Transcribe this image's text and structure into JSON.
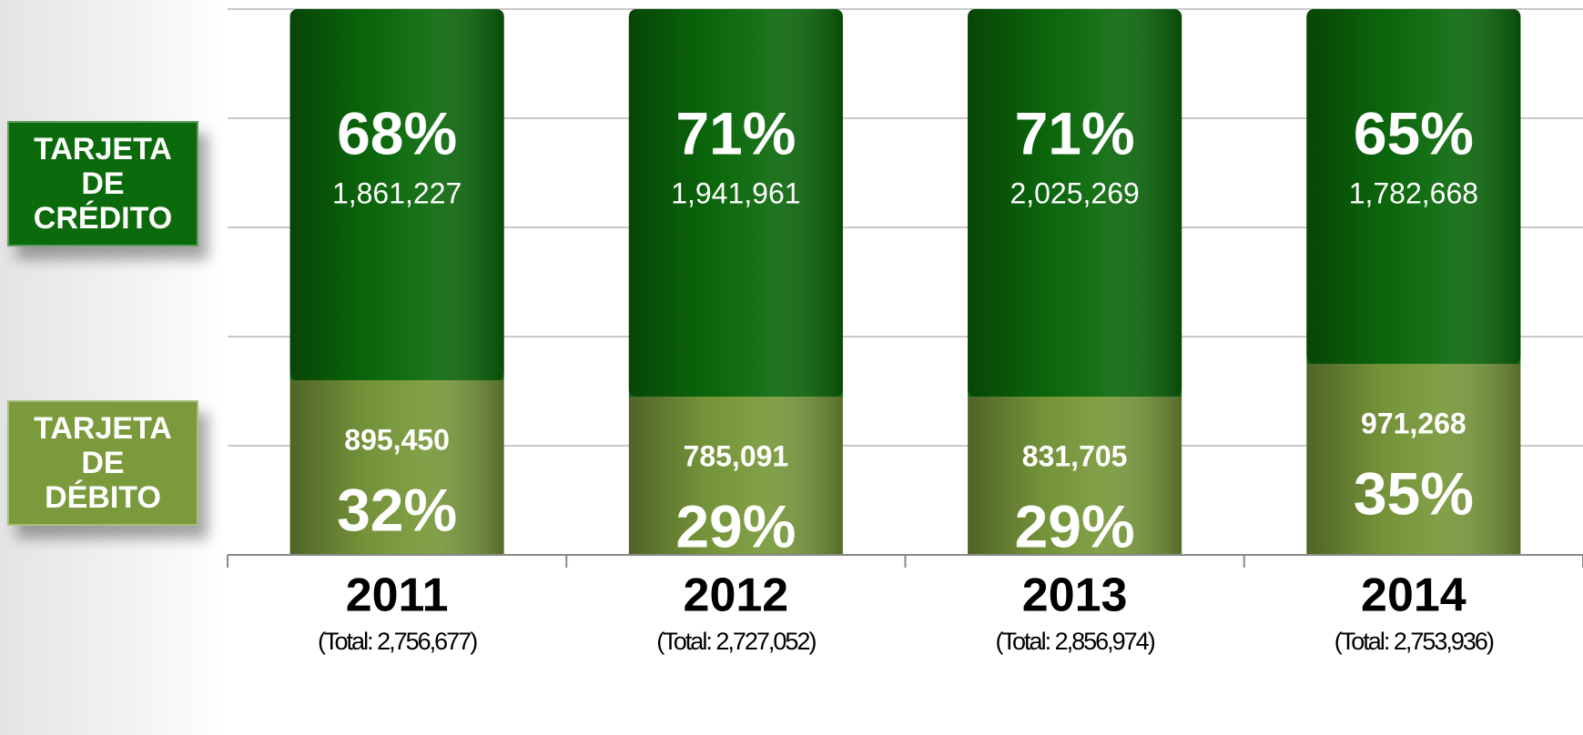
{
  "chart_data": {
    "type": "stacked_bar_100",
    "categories": [
      "2011",
      "2012",
      "2013",
      "2014"
    ],
    "totals": [
      "(Total: 2,756,677)",
      "(Total: 2,727,052)",
      "(Total: 2,856,974)",
      "(Total: 2,753,936)"
    ],
    "ylim": [
      0,
      100
    ],
    "yticks": [
      0,
      20,
      40,
      60,
      80,
      100
    ],
    "grid": true,
    "series": [
      {
        "name": "TARJETA DE DÉBITO",
        "color": "#7a9a3c",
        "values": [
          32,
          29,
          29,
          35
        ],
        "value_labels": [
          "32%",
          "29%",
          "29%",
          "35%"
        ],
        "counts": [
          895450,
          785091,
          831705,
          971268
        ],
        "count_labels": [
          "895,450",
          "785,091",
          "831,705",
          "971,268"
        ]
      },
      {
        "name": "TARJETA DE CRÉDITO",
        "color": "#0b6a0b",
        "values": [
          68,
          71,
          71,
          65
        ],
        "value_labels": [
          "68%",
          "71%",
          "71%",
          "65%"
        ],
        "counts": [
          1861227,
          1941961,
          2025269,
          1782668
        ],
        "count_labels": [
          "1,861,227",
          "1,941,961",
          "2,025,269",
          "1,782,668"
        ]
      }
    ]
  }
}
